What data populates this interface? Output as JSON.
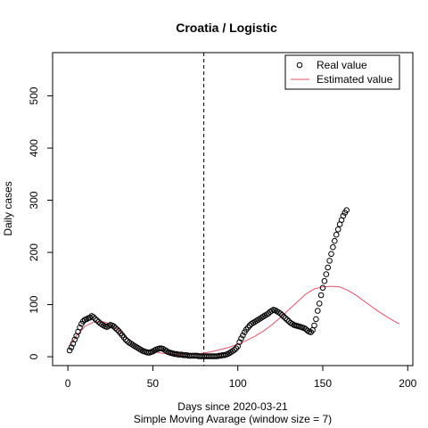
{
  "chart_data": {
    "type": "scatter",
    "title": "Croatia / Logistic",
    "xlabel": "Days since 2020-03-21",
    "sublabel": "Simple Moving Avarage (window size = 7)",
    "ylabel": "Daily cases",
    "xlim": [
      -9,
      203
    ],
    "ylim": [
      -17,
      583
    ],
    "x_ticks": [
      0,
      50,
      100,
      150,
      200
    ],
    "y_ticks": [
      0,
      100,
      200,
      300,
      400,
      500
    ],
    "x_tick_labels": [
      "0",
      "50",
      "100",
      "150",
      "200"
    ],
    "y_tick_labels": [
      "0",
      "100",
      "200",
      "300",
      "400",
      "500"
    ],
    "vline_x": 80,
    "grid": false,
    "legend_position": "top-right",
    "series": [
      {
        "name": "Real value",
        "style": "points",
        "color": "#000000",
        "x": [
          1,
          2,
          3,
          4,
          5,
          6,
          7,
          8,
          9,
          10,
          11,
          12,
          13,
          14,
          15,
          16,
          17,
          18,
          19,
          20,
          21,
          22,
          23,
          24,
          25,
          26,
          27,
          28,
          29,
          30,
          31,
          32,
          33,
          34,
          35,
          36,
          37,
          38,
          39,
          40,
          41,
          42,
          43,
          44,
          45,
          46,
          47,
          48,
          49,
          50,
          51,
          52,
          53,
          54,
          55,
          56,
          57,
          58,
          59,
          60,
          61,
          62,
          63,
          64,
          65,
          66,
          67,
          68,
          69,
          70,
          71,
          72,
          73,
          74,
          75,
          76,
          77,
          78,
          79,
          80,
          81,
          82,
          83,
          84,
          85,
          86,
          87,
          88,
          89,
          90,
          91,
          92,
          93,
          94,
          95,
          96,
          97,
          98,
          99,
          100,
          101,
          102,
          103,
          104,
          105,
          106,
          107,
          108,
          109,
          110,
          111,
          112,
          113,
          114,
          115,
          116,
          117,
          118,
          119,
          120,
          121,
          122,
          123,
          124,
          125,
          126,
          127,
          128,
          129,
          130,
          131,
          132,
          133,
          134,
          135,
          136,
          137,
          138,
          139,
          140,
          141,
          142,
          143,
          144,
          145,
          146,
          147,
          148,
          149,
          150,
          151,
          152,
          153,
          154,
          155,
          156,
          157,
          158,
          159,
          160,
          161,
          162,
          163,
          164
        ],
        "y": [
          12,
          18,
          25,
          33,
          40,
          48,
          56,
          63,
          68,
          71,
          72,
          74,
          75,
          78,
          76,
          73,
          70,
          67,
          64,
          62,
          60,
          58,
          57,
          59,
          61,
          60,
          58,
          55,
          52,
          49,
          45,
          41,
          37,
          33,
          30,
          27,
          25,
          23,
          21,
          19,
          17,
          15,
          13,
          11,
          10,
          9,
          8,
          8,
          9,
          10,
          12,
          14,
          15,
          16,
          16,
          15,
          13,
          11,
          9,
          8,
          7,
          6,
          5,
          5,
          4,
          4,
          4,
          3,
          3,
          3,
          2,
          2,
          2,
          2,
          2,
          2,
          1,
          1,
          1,
          1,
          1,
          1,
          1,
          1,
          1,
          1,
          1,
          1,
          2,
          2,
          3,
          3,
          4,
          5,
          7,
          9,
          11,
          13,
          16,
          20,
          28,
          35,
          41,
          47,
          52,
          56,
          60,
          63,
          65,
          67,
          69,
          71,
          73,
          75,
          77,
          79,
          81,
          83,
          86,
          88,
          90,
          89,
          87,
          85,
          83,
          80,
          77,
          74,
          71,
          68,
          65,
          63,
          61,
          60,
          59,
          58,
          57,
          56,
          55,
          53,
          50,
          48,
          47,
          51,
          60,
          72,
          88,
          102,
          118,
          132,
          145,
          158,
          171,
          184,
          197,
          210,
          222,
          234,
          244,
          254,
          262,
          270,
          276,
          281
        ]
      },
      {
        "name": "Estimated value",
        "style": "line",
        "color": "#DF536B",
        "x": [
          1,
          5,
          10,
          15,
          20,
          22,
          25,
          30,
          35,
          40,
          45,
          50,
          55,
          60,
          65,
          70,
          75,
          80,
          85,
          90,
          95,
          100,
          105,
          110,
          115,
          120,
          125,
          130,
          135,
          140,
          145,
          150,
          155,
          160,
          165,
          170,
          175,
          180,
          185,
          190,
          195
        ],
        "y": [
          20,
          40,
          58,
          66,
          67,
          66,
          62,
          50,
          36,
          24,
          15,
          10,
          7,
          5,
          4,
          4,
          5,
          7,
          10,
          14,
          18,
          24,
          31,
          39,
          49,
          61,
          75,
          90,
          105,
          120,
          130,
          134,
          135,
          134,
          127,
          117,
          105,
          93,
          82,
          72,
          63
        ]
      }
    ]
  }
}
